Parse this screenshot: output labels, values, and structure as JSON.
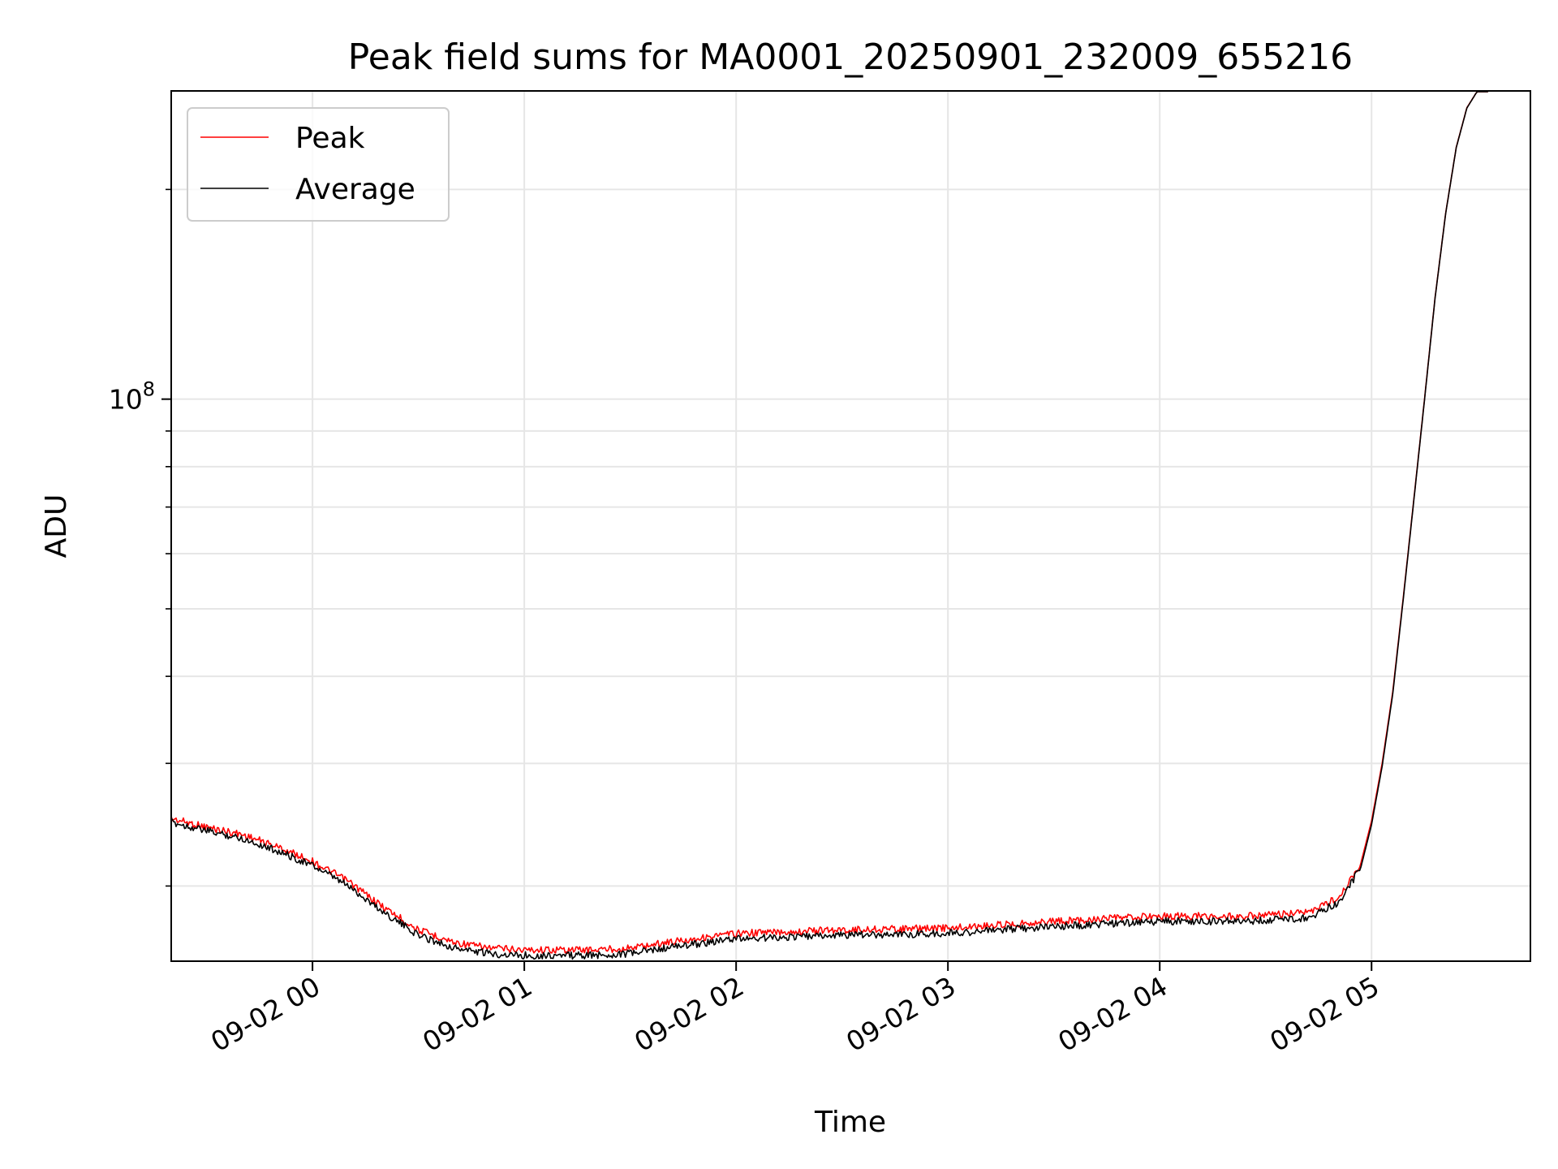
{
  "chart_data": {
    "type": "line",
    "title": "Peak field sums for MA0001_20250901_232009_655216",
    "xlabel": "Time",
    "ylabel": "ADU",
    "yscale": "log",
    "ylim": [
      15600000,
      277000000
    ],
    "xlim_hours_since_2025_09_02_00_00": [
      -0.667,
      5.75
    ],
    "x_tick_values": [
      0,
      1,
      2,
      3,
      4,
      5
    ],
    "x_tick_labels": [
      "09-02 00",
      "09-02 01",
      "09-02 02",
      "09-02 03",
      "09-02 04",
      "09-02 05"
    ],
    "y_major_tick": {
      "value": 100000000,
      "base": "10",
      "exponent": "8"
    },
    "y_minor_ticks": [
      20000000,
      30000000,
      40000000,
      50000000,
      60000000,
      70000000,
      80000000,
      90000000,
      200000000
    ],
    "grid": true,
    "legend": {
      "position": "upper-left",
      "entries": [
        "Peak",
        "Average"
      ]
    },
    "series": [
      {
        "name": "Peak",
        "color": "#ff0000",
        "x_hours": [
          -0.667,
          -0.5,
          -0.33,
          -0.17,
          0.0,
          0.17,
          0.33,
          0.5,
          0.67,
          0.83,
          1.0,
          1.17,
          1.33,
          1.5,
          1.67,
          2.0,
          2.5,
          3.0,
          3.5,
          4.0,
          4.4,
          4.7,
          4.85,
          4.95,
          5.0,
          5.05,
          5.1,
          5.15,
          5.2,
          5.25,
          5.3,
          5.35,
          5.4,
          5.45,
          5.5,
          5.55
        ],
        "values": [
          25000000,
          24300000,
          23700000,
          22800000,
          21700000,
          20300000,
          18700000,
          17300000,
          16600000,
          16300000,
          16200000,
          16200000,
          16200000,
          16300000,
          16600000,
          17100000,
          17300000,
          17400000,
          17800000,
          18100000,
          18100000,
          18300000,
          19300000,
          21600000,
          24800000,
          30000000,
          38000000,
          52000000,
          72000000,
          100000000,
          140000000,
          185000000,
          230000000,
          262000000,
          277000000,
          277000000
        ]
      },
      {
        "name": "Average",
        "color": "#000000",
        "x_hours": [
          -0.667,
          -0.5,
          -0.33,
          -0.17,
          0.0,
          0.17,
          0.33,
          0.5,
          0.67,
          0.83,
          1.0,
          1.17,
          1.33,
          1.5,
          1.67,
          2.0,
          2.5,
          3.0,
          3.5,
          4.0,
          4.4,
          4.7,
          4.85,
          4.95,
          5.0,
          5.05,
          5.1,
          5.15,
          5.2,
          5.25,
          5.3,
          5.35,
          5.4,
          5.45,
          5.5,
          5.55
        ],
        "values": [
          24700000,
          24000000,
          23400000,
          22500000,
          21400000,
          20000000,
          18400000,
          17000000,
          16300000,
          16000000,
          15900000,
          15900000,
          15900000,
          16000000,
          16300000,
          16800000,
          17000000,
          17100000,
          17500000,
          17800000,
          17800000,
          18000000,
          19000000,
          21300000,
          24500000,
          29700000,
          37700000,
          51700000,
          71700000,
          99700000,
          139700000,
          184700000,
          229700000,
          261700000,
          277000000,
          277000000
        ]
      }
    ]
  }
}
